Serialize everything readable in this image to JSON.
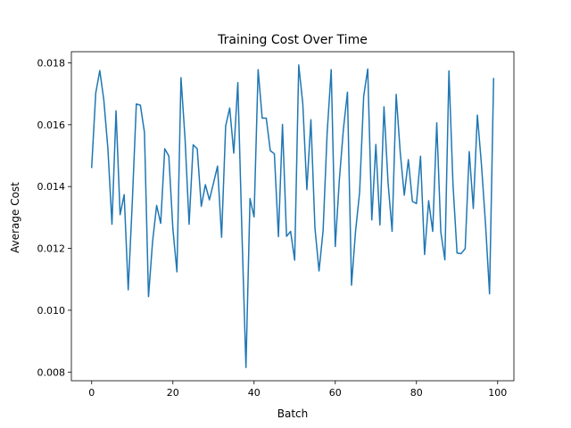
{
  "chart_data": {
    "type": "line",
    "title": "Training Cost Over Time",
    "xlabel": "Batch",
    "ylabel": "Average Cost",
    "xlim": [
      -5,
      104
    ],
    "ylim": [
      0.00772,
      0.01836
    ],
    "xticks": [
      0,
      20,
      40,
      60,
      80,
      100
    ],
    "xtick_labels": [
      "0",
      "20",
      "40",
      "60",
      "80",
      "100"
    ],
    "yticks": [
      0.008,
      0.01,
      0.012,
      0.014,
      0.016,
      0.018
    ],
    "ytick_labels": [
      "0.008",
      "0.010",
      "0.012",
      "0.014",
      "0.016",
      "0.018"
    ],
    "grid": false,
    "series": [
      {
        "color": "#1f77b4",
        "x": [
          0,
          1,
          2,
          3,
          4,
          5,
          6,
          7,
          8,
          9,
          10,
          11,
          12,
          13,
          14,
          15,
          16,
          17,
          18,
          19,
          20,
          21,
          22,
          23,
          24,
          25,
          26,
          27,
          28,
          29,
          30,
          31,
          32,
          33,
          34,
          35,
          36,
          37,
          38,
          39,
          40,
          41,
          42,
          43,
          44,
          45,
          46,
          47,
          48,
          49,
          50,
          51,
          52,
          53,
          54,
          55,
          56,
          57,
          58,
          59,
          60,
          61,
          62,
          63,
          64,
          65,
          66,
          67,
          68,
          69,
          70,
          71,
          72,
          73,
          74,
          75,
          76,
          77,
          78,
          79,
          80,
          81,
          82,
          83,
          84,
          85,
          86,
          87,
          88,
          89,
          90,
          91,
          92,
          93,
          94,
          95,
          96,
          97,
          98,
          99
        ],
        "values": [
          0.01462,
          0.01702,
          0.01775,
          0.01679,
          0.01522,
          0.01278,
          0.01645,
          0.01309,
          0.01374,
          0.01066,
          0.01348,
          0.01667,
          0.01663,
          0.01575,
          0.01044,
          0.01222,
          0.01339,
          0.01281,
          0.01522,
          0.01499,
          0.01264,
          0.01124,
          0.01752,
          0.01555,
          0.01278,
          0.01535,
          0.01522,
          0.01336,
          0.01406,
          0.01357,
          0.01411,
          0.01466,
          0.01236,
          0.01596,
          0.01654,
          0.01508,
          0.01736,
          0.01256,
          0.00815,
          0.01361,
          0.01302,
          0.01778,
          0.01621,
          0.01621,
          0.01516,
          0.01506,
          0.01238,
          0.01601,
          0.01239,
          0.01255,
          0.01162,
          0.01793,
          0.01668,
          0.0139,
          0.01616,
          0.01265,
          0.01127,
          0.01257,
          0.01573,
          0.01778,
          0.01206,
          0.01421,
          0.01585,
          0.01705,
          0.01081,
          0.01256,
          0.01382,
          0.01692,
          0.0178,
          0.01292,
          0.01536,
          0.01276,
          0.01658,
          0.01413,
          0.01255,
          0.01698,
          0.01511,
          0.01372,
          0.01487,
          0.01352,
          0.01345,
          0.01498,
          0.0118,
          0.01354,
          0.01255,
          0.01606,
          0.01253,
          0.01163,
          0.01774,
          0.01406,
          0.01185,
          0.01183,
          0.01199,
          0.01513,
          0.01329,
          0.01631,
          0.01472,
          0.01281,
          0.01053,
          0.01749
        ]
      }
    ]
  }
}
